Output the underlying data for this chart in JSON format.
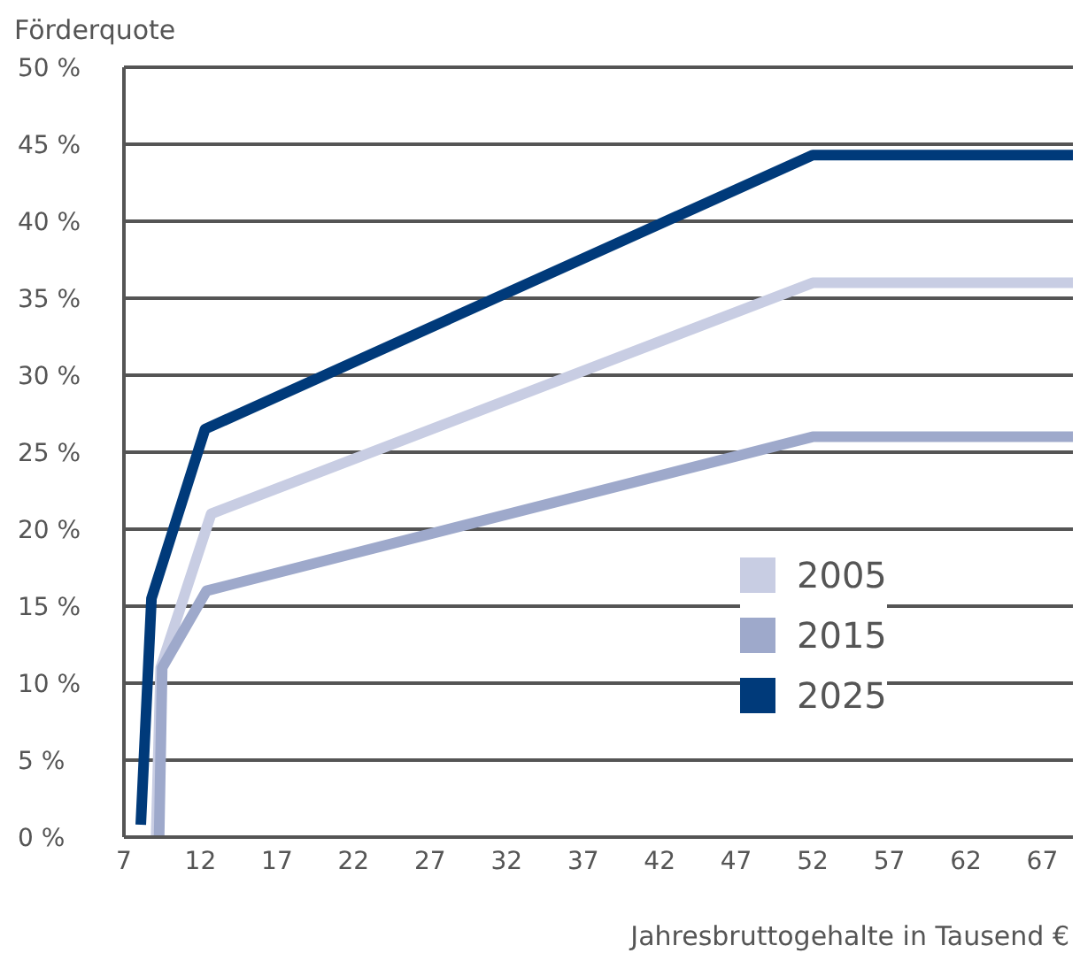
{
  "chart_data": {
    "type": "line",
    "xlabel": "Jahresbruttogehalte in Tausend €",
    "ylabel": "Förderquote",
    "xlim": [
      7,
      69
    ],
    "xticks": [
      7,
      12,
      17,
      22,
      27,
      32,
      37,
      42,
      47,
      52,
      57,
      62,
      67
    ],
    "ylim": [
      0,
      50
    ],
    "yticks": [
      {
        "value": 0,
        "label": "0 %"
      },
      {
        "value": 5,
        "label": "5 %"
      },
      {
        "value": 10,
        "label": "10 %"
      },
      {
        "value": 15,
        "label": "15 %"
      },
      {
        "value": 20,
        "label": "20 %"
      },
      {
        "value": 25,
        "label": "25 %"
      },
      {
        "value": 30,
        "label": "30 %"
      },
      {
        "value": 35,
        "label": "35 %"
      },
      {
        "value": 40,
        "label": "40 %"
      },
      {
        "value": 45,
        "label": "45 %"
      },
      {
        "value": 50,
        "label": "50 %"
      }
    ],
    "grid": "y",
    "legend": "bottom right",
    "marker": "none",
    "line_style": "solid",
    "series": [
      {
        "name": "2005",
        "color": "#c8cde3",
        "x": [
          9.1,
          9.4,
          12.7,
          52,
          69
        ],
        "values": [
          0,
          11,
          21,
          36,
          36
        ]
      },
      {
        "name": "2015",
        "color": "#9ea9cb",
        "x": [
          9.3,
          9.5,
          12.4,
          52,
          69
        ],
        "values": [
          0,
          11,
          16,
          26,
          26
        ]
      },
      {
        "name": "2025",
        "color": "#003a7a",
        "x": [
          8.1,
          8.8,
          12.3,
          52,
          69
        ],
        "values": [
          0.8,
          15.5,
          26.5,
          44.3,
          44.3
        ]
      }
    ]
  }
}
